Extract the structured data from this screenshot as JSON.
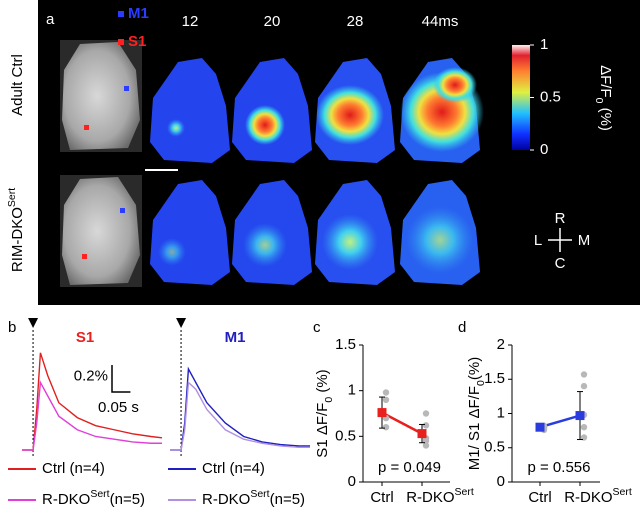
{
  "panel_a": {
    "label": "a",
    "rows": [
      "Adult Ctrl",
      [
        "RIM-DKO",
        "Sert"
      ]
    ],
    "roi_labels": [
      {
        "text": "M1",
        "color": "#2a3cff"
      },
      {
        "text": "S1",
        "color": "#ff2020"
      }
    ],
    "times": [
      "12",
      "20",
      "28",
      "44ms"
    ],
    "colorbar": {
      "label": [
        "ΔF/F",
        "0",
        " (%)"
      ],
      "lim": [
        0,
        1
      ],
      "ticks": [
        0,
        0.5,
        1
      ]
    },
    "compass": [
      "R",
      "L",
      "M",
      "C"
    ]
  },
  "chart_data": [
    {
      "type": "line",
      "panel_label": "b",
      "title": "S1",
      "title_color": "#e8201e",
      "x": [
        0,
        0.02,
        0.03,
        0.04,
        0.05,
        0.07,
        0.1,
        0.15,
        0.2,
        0.25,
        0.3,
        0.35,
        0.38
      ],
      "xlim": [
        0,
        0.38
      ],
      "ylim": [
        0,
        0.8
      ],
      "stimulus_x": 0.03,
      "scale_bar": {
        "x": {
          "value": 0.05,
          "label": "0.05 s"
        },
        "y": {
          "value": 0.2,
          "label": "0.2%"
        }
      },
      "series": [
        {
          "name": "Ctrl (n=4)",
          "color": "#e02020",
          "values": [
            0,
            0,
            0,
            0.3,
            0.72,
            0.55,
            0.35,
            0.24,
            0.18,
            0.15,
            0.12,
            0.1,
            0.09
          ]
        },
        {
          "name": [
            "R-DKO",
            "Sert",
            "(n=5)"
          ],
          "color": "#e040d8",
          "values": [
            0,
            0,
            0,
            0.2,
            0.5,
            0.4,
            0.25,
            0.15,
            0.1,
            0.08,
            0.06,
            0.05,
            0.05
          ]
        }
      ]
    },
    {
      "type": "line",
      "title": "M1",
      "title_color": "#2020c0",
      "x": [
        0,
        0.02,
        0.03,
        0.04,
        0.05,
        0.07,
        0.1,
        0.15,
        0.2,
        0.25,
        0.3,
        0.35,
        0.38
      ],
      "xlim": [
        0,
        0.38
      ],
      "ylim": [
        0,
        0.8
      ],
      "stimulus_x": 0.03,
      "series": [
        {
          "name": "Ctrl (n=4)",
          "color": "#2020c0",
          "values": [
            0,
            0,
            0,
            0.2,
            0.6,
            0.5,
            0.35,
            0.2,
            0.1,
            0.06,
            0.04,
            0.03,
            0.03
          ]
        },
        {
          "name": [
            "R-DKO",
            "Sert",
            "(n=5)"
          ],
          "color": "#b090e0",
          "values": [
            0,
            0,
            0,
            0.15,
            0.5,
            0.45,
            0.3,
            0.15,
            0.08,
            0.05,
            0.03,
            0.02,
            0.02
          ]
        }
      ]
    },
    {
      "type": "errorbar",
      "panel_label": "c",
      "y_label": [
        "S1  ΔF/F",
        "0",
        " (%)"
      ],
      "categories": [
        "Ctrl",
        [
          "R-DKO",
          "Sert"
        ]
      ],
      "values": [
        0.76,
        0.53
      ],
      "errors": [
        0.17,
        0.1
      ],
      "points": [
        [
          0.98,
          0.9,
          0.7,
          0.6
        ],
        [
          0.75,
          0.62,
          0.48,
          0.4,
          0.45
        ]
      ],
      "point_color": "#b8b8b8",
      "color": "#e8201e",
      "ylim": [
        0,
        1.5
      ],
      "yticks": [
        0,
        0.5,
        1,
        1.5
      ],
      "annotation": "p = 0.049"
    },
    {
      "type": "errorbar",
      "panel_label": "d",
      "y_label": [
        "M1/ S1 ΔF/F",
        "0",
        "(%)"
      ],
      "categories": [
        "Ctrl",
        [
          "R-DKO",
          "Sert"
        ]
      ],
      "values": [
        0.8,
        0.97
      ],
      "errors": [
        0.03,
        0.35
      ],
      "points": [
        [
          0.82,
          0.8,
          0.78,
          0.76
        ],
        [
          1.57,
          1.4,
          0.98,
          0.8,
          0.65
        ]
      ],
      "point_color": "#b8b8b8",
      "color": "#2a3ce0",
      "ylim": [
        0,
        2
      ],
      "yticks": [
        0,
        0.5,
        1,
        1.5,
        2
      ],
      "annotation": "p = 0.556"
    }
  ]
}
